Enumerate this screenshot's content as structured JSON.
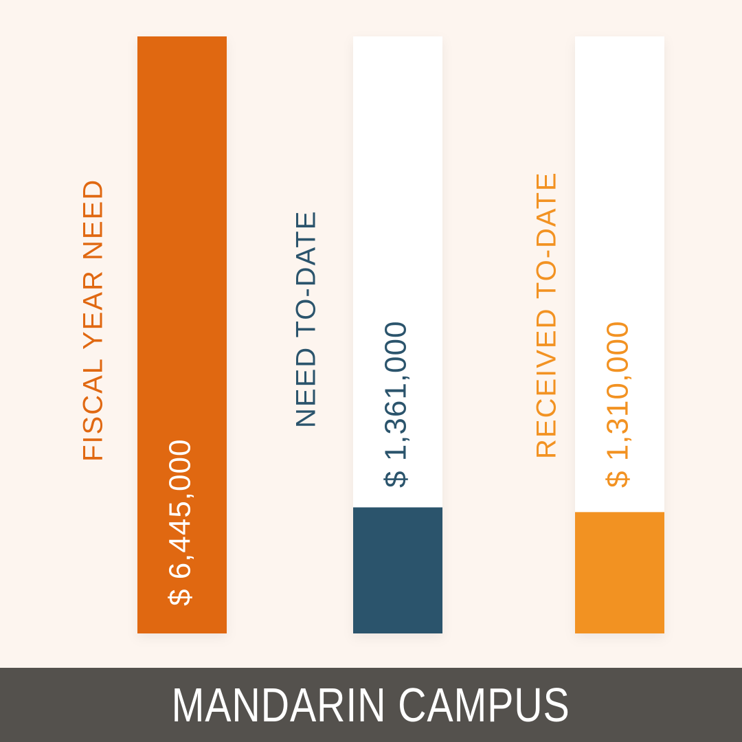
{
  "chart_data": {
    "type": "bar",
    "categories": [
      "FISCAL YEAR NEED",
      "NEED TO-DATE",
      "RECEIVED TO-DATE"
    ],
    "values": [
      6445000,
      1361000,
      1310000
    ],
    "value_labels": [
      "$ 6,445,000",
      "$ 1,361,000",
      "$ 1,310,000"
    ],
    "colors": [
      "#e06811",
      "#2b546c",
      "#f29222"
    ],
    "track_color": "#ffffff",
    "ylim": [
      0,
      6445000
    ]
  },
  "banner": {
    "title": "MANDARIN CAMPUS"
  }
}
